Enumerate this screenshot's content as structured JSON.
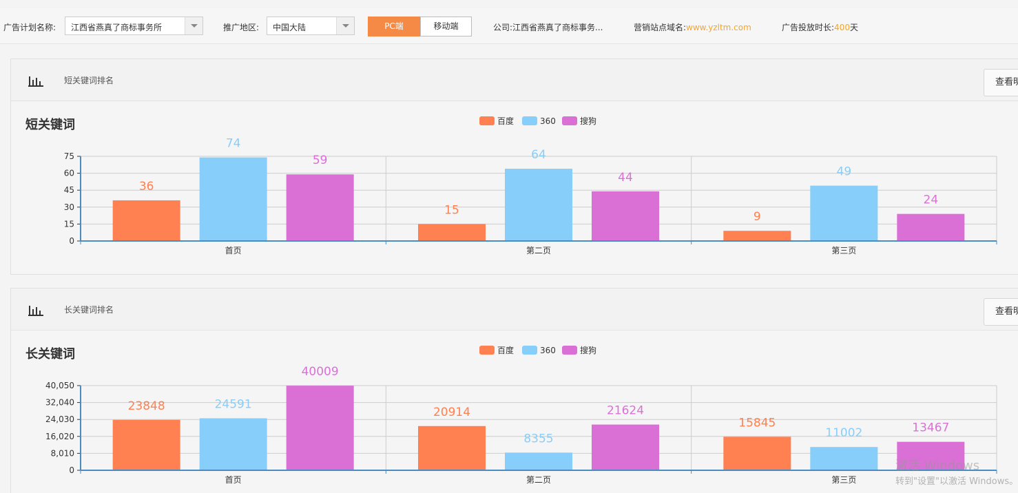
{
  "toolbar": {
    "plan_label": "广告计划名称:",
    "plan_value": "江西省燕真了商标事务所",
    "region_label": "推广地区:",
    "region_value": "中国大陆",
    "pc_label": "PC端",
    "mobile_label": "移动端",
    "company_label": "公司:",
    "company_value": "江西省燕真了商标事务...",
    "domain_label": "营销站点域名:",
    "domain_value": "www.yzltm.com",
    "duration_label": "广告投放时长:",
    "duration_value": "400",
    "duration_unit": "天"
  },
  "panels": [
    {
      "header": "短关键词排名",
      "view_label": "查看明细"
    },
    {
      "header": "长关键词排名",
      "view_label": "查看明细"
    }
  ],
  "watermark": {
    "line1": "激活 Windows",
    "line2": "转到\"设置\"以激活 Windows。"
  },
  "colors": {
    "baidu": "#ff8050",
    "s360": "#87cefa",
    "sogou": "#da70d6",
    "accent": "#f48a45",
    "axis": "#4a8bc2"
  },
  "chart_data": [
    {
      "type": "bar",
      "title": "短关键词",
      "categories": [
        "首页",
        "第二页",
        "第三页"
      ],
      "yticks": [
        "0",
        "15",
        "30",
        "45",
        "60",
        "75"
      ],
      "ylim": [
        0,
        75
      ],
      "legend_position": "top-center",
      "series": [
        {
          "name": "百度",
          "values": [
            36,
            15,
            9
          ]
        },
        {
          "name": "360",
          "values": [
            74,
            64,
            49
          ]
        },
        {
          "name": "搜狗",
          "values": [
            59,
            44,
            24
          ]
        }
      ]
    },
    {
      "type": "bar",
      "title": "长关键词",
      "categories": [
        "首页",
        "第二页",
        "第三页"
      ],
      "yticks": [
        "0",
        "8,010",
        "16,020",
        "24,030",
        "32,040",
        "40,050"
      ],
      "ylim": [
        0,
        40050
      ],
      "legend_position": "top-center",
      "series": [
        {
          "name": "百度",
          "values": [
            23848,
            20914,
            15845
          ]
        },
        {
          "name": "360",
          "values": [
            24591,
            8355,
            11002
          ]
        },
        {
          "name": "搜狗",
          "values": [
            40009,
            21624,
            13467
          ]
        }
      ]
    }
  ]
}
